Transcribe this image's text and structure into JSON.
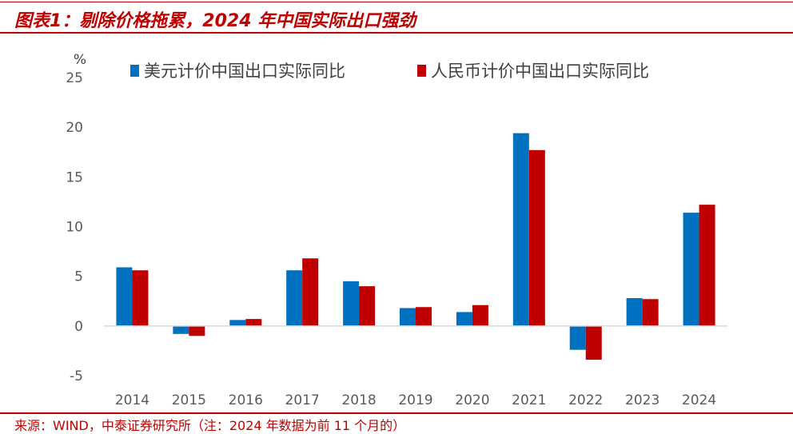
{
  "header": {
    "title": "图表1：剔除价格拖累，2024 年中国实际出口强劲"
  },
  "footer": {
    "source": "来源：WIND，中泰证券研究所（注：2024 年数据为前 11 个月的）"
  },
  "chart_data": {
    "type": "bar",
    "unit_label": "%",
    "categories": [
      "2014",
      "2015",
      "2016",
      "2017",
      "2018",
      "2019",
      "2020",
      "2021",
      "2022",
      "2023",
      "2024"
    ],
    "series": [
      {
        "name": "美元计价中国出口实际同比",
        "color": "#0070c0",
        "values": [
          5.9,
          -0.8,
          0.6,
          5.6,
          4.5,
          1.8,
          1.4,
          19.4,
          -2.4,
          2.8,
          11.4
        ]
      },
      {
        "name": "人民币计价中国出口实际同比",
        "color": "#c00000",
        "values": [
          5.6,
          -1.0,
          0.7,
          6.8,
          4.0,
          1.9,
          2.1,
          17.7,
          -3.4,
          2.7,
          12.2
        ]
      }
    ],
    "ylim": [
      -5,
      25
    ],
    "yticks": [
      -5,
      0,
      5,
      10,
      15,
      20,
      25
    ],
    "legend_position": "top",
    "grid": false
  }
}
